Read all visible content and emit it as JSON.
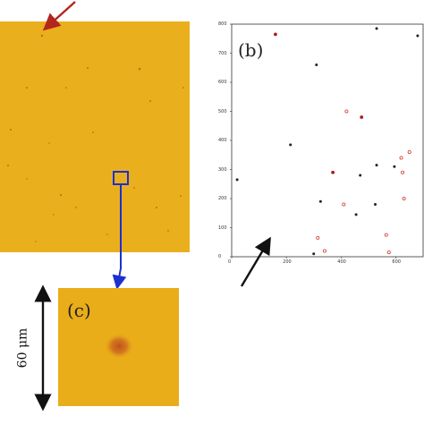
{
  "figure": {
    "panel_b_label": "(b)",
    "panel_c_label": "(c)",
    "scale_bar_label": "60 μm"
  },
  "colors": {
    "background": "#ffffff",
    "micrograph": "#e9ad1a",
    "spot": "#c8691c",
    "red_arrow": "#b3261e",
    "blue_marker": "#1d2fd0",
    "black_arrow": "#111111",
    "scatter_filled": "#222222",
    "scatter_hollow": "#d03a2e",
    "scatter_mixed": "#a51d1d"
  },
  "chart_data": {
    "type": "scatter",
    "xlim": [
      0,
      700
    ],
    "ylim": [
      0,
      800
    ],
    "x_ticks": [
      "0",
      "200",
      "400",
      "600"
    ],
    "y_ticks": [
      "0",
      "100",
      "200",
      "300",
      "400",
      "500",
      "600",
      "700",
      "800"
    ],
    "grid": false,
    "points": [
      {
        "x": 160,
        "y": 765,
        "style": "mixed"
      },
      {
        "x": 310,
        "y": 660,
        "style": "filled"
      },
      {
        "x": 530,
        "y": 785,
        "style": "filled"
      },
      {
        "x": 680,
        "y": 760,
        "style": "filled"
      },
      {
        "x": 420,
        "y": 500,
        "style": "hollow"
      },
      {
        "x": 475,
        "y": 480,
        "style": "mixed"
      },
      {
        "x": 215,
        "y": 385,
        "style": "filled"
      },
      {
        "x": 530,
        "y": 315,
        "style": "filled"
      },
      {
        "x": 650,
        "y": 360,
        "style": "hollow"
      },
      {
        "x": 620,
        "y": 340,
        "style": "hollow"
      },
      {
        "x": 595,
        "y": 310,
        "style": "filled"
      },
      {
        "x": 370,
        "y": 290,
        "style": "mixed"
      },
      {
        "x": 470,
        "y": 280,
        "style": "filled"
      },
      {
        "x": 625,
        "y": 290,
        "style": "hollow"
      },
      {
        "x": 20,
        "y": 265,
        "style": "filled"
      },
      {
        "x": 325,
        "y": 190,
        "style": "filled"
      },
      {
        "x": 410,
        "y": 180,
        "style": "hollow"
      },
      {
        "x": 455,
        "y": 145,
        "style": "filled"
      },
      {
        "x": 525,
        "y": 180,
        "style": "filled"
      },
      {
        "x": 630,
        "y": 200,
        "style": "hollow"
      },
      {
        "x": 565,
        "y": 75,
        "style": "hollow"
      },
      {
        "x": 315,
        "y": 65,
        "style": "hollow"
      },
      {
        "x": 340,
        "y": 20,
        "style": "hollow"
      },
      {
        "x": 300,
        "y": 10,
        "style": "filled"
      },
      {
        "x": 575,
        "y": 15,
        "style": "hollow"
      }
    ]
  }
}
